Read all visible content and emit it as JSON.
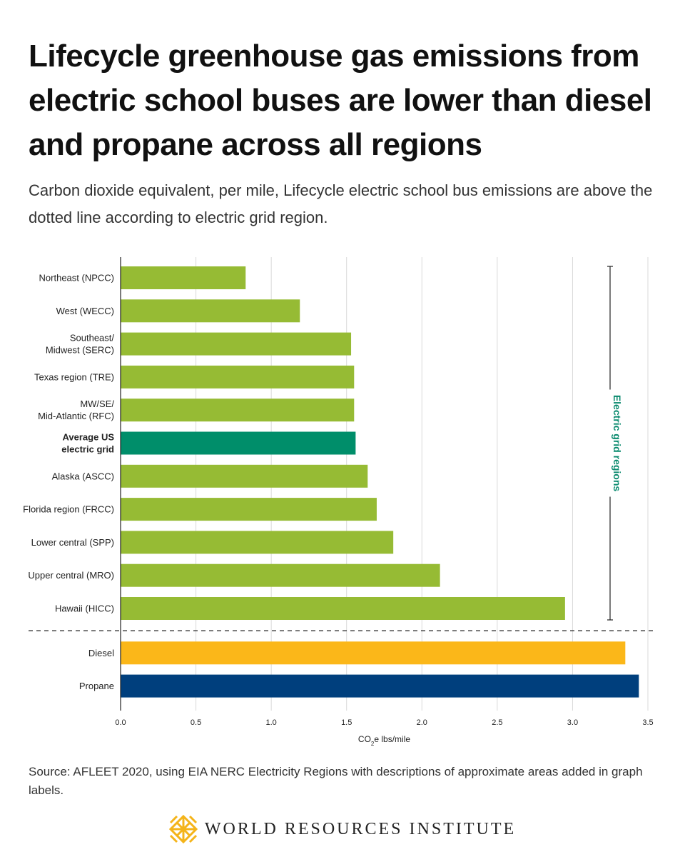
{
  "colors": {
    "electric": "#96bb34",
    "average": "#008e6a",
    "diesel": "#fbb719",
    "propane": "#003f7d",
    "gridline": "#d9d9d9",
    "bracket_label": "#0a8a6e",
    "logo": "#f4b41a"
  },
  "icons": {
    "logo": "wri-lattice-logo-icon"
  },
  "title": "Lifecycle greenhouse gas emissions from electric school buses are lower than diesel and propane across all regions",
  "subtitle": "Carbon dioxide equivalent, per mile, Lifecycle electric school bus emissions are above the dotted line according to electric grid region.",
  "source": "Source: AFLEET 2020, using EIA NERC Electricity Regions with descriptions of approximate areas added in graph labels.",
  "footer": {
    "org_name": "WORLD RESOURCES INSTITUTE"
  },
  "chart_data": {
    "type": "bar",
    "orientation": "horizontal",
    "categories": [
      "Northeast (NPCC)",
      "West (WECC)",
      "Southeast/\nMidwest (SERC)",
      "Texas region (TRE)",
      "MW/SE/\nMid-Atlantic (RFC)",
      "Average US\nelectric grid",
      "Alaska (ASCC)",
      "Florida region (FRCC)",
      "Lower central (SPP)",
      "Upper central (MRO)",
      "Hawaii (HICC)",
      "Diesel",
      "Propane"
    ],
    "values": [
      0.83,
      1.19,
      1.53,
      1.55,
      1.55,
      1.56,
      1.64,
      1.7,
      1.81,
      2.12,
      2.95,
      3.35,
      3.44
    ],
    "bar_color_keys": [
      "electric",
      "electric",
      "electric",
      "electric",
      "electric",
      "average",
      "electric",
      "electric",
      "electric",
      "electric",
      "electric",
      "diesel",
      "propane"
    ],
    "bold_categories": [
      "Average US\nelectric grid"
    ],
    "divider_after_index": 10,
    "xlabel_base": "CO",
    "xlabel_sub": "2",
    "xlabel_rest": "e lbs/mile",
    "xlim": [
      0,
      3.5
    ],
    "xticks": [
      "0.0",
      "0.5",
      "1.0",
      "1.5",
      "2.0",
      "2.5",
      "3.0",
      "3.5"
    ],
    "grid": true,
    "bracket": {
      "label": "Electric grid regions",
      "from_index": 0,
      "to_index": 10
    }
  }
}
